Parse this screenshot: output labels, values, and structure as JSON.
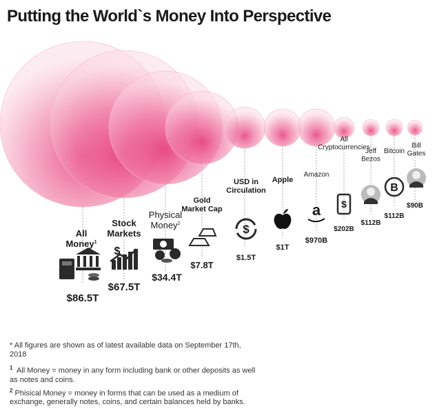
{
  "title": "Putting the World`s Money Into Perspective",
  "chart_data": {
    "type": "bubble",
    "unit": "USD",
    "items": [
      {
        "label": "All Money",
        "sup": "1",
        "value_text": "$86.5T",
        "value_billions": 86500,
        "icon": "wallet-bank-icon"
      },
      {
        "label": "Stock Markets",
        "sup": "",
        "value_text": "$67.5T",
        "value_billions": 67500,
        "icon": "stock-chart-icon"
      },
      {
        "label": "Physical Money",
        "sup": "2",
        "value_text": "$34.4T",
        "value_billions": 34400,
        "icon": "cash-coins-icon"
      },
      {
        "label": "Gold Market Cap",
        "sup": "",
        "value_text": "$7.8T",
        "value_billions": 7800,
        "icon": "gold-bars-icon"
      },
      {
        "label": "USD in Circulation",
        "sup": "",
        "value_text": "$1.5T",
        "value_billions": 1500,
        "icon": "dollar-cycle-icon"
      },
      {
        "label": "Apple",
        "sup": "",
        "value_text": "$1T",
        "value_billions": 1000,
        "icon": "apple-logo-icon"
      },
      {
        "label": "Amazon",
        "sup": "",
        "value_text": "$970B",
        "value_billions": 970,
        "icon": "amazon-logo-icon"
      },
      {
        "label": "All Cryptocurrencies",
        "sup": "",
        "value_text": "$202B",
        "value_billions": 202,
        "icon": "crypto-phone-icon"
      },
      {
        "label": "Jeff Bezos",
        "sup": "",
        "value_text": "$112B",
        "value_billions": 112,
        "icon": "portrait-icon"
      },
      {
        "label": "Bitcoin",
        "sup": "",
        "value_text": "$112B",
        "value_billions": 112,
        "icon": "bitcoin-icon"
      },
      {
        "label": "Bill Gates",
        "sup": "",
        "value_text": "$90B",
        "value_billions": 90,
        "icon": "portrait-icon"
      }
    ]
  },
  "notes": {
    "asterisk": "* All figures are shown as of latest available data on September 17th, 2018",
    "note1_marker": "1",
    "note1": "All Money = money in any form including bank or other deposits as well as notes and coins.",
    "note2_marker": "2",
    "note2": "Phisical Money = money in forms that can be used as a medium of exchange, generally notes, coins, and certain balances held by banks."
  },
  "colors": {
    "bubble": "#e8407a",
    "bubble_light": "#f8c9d9",
    "text": "#1a1a1a"
  }
}
